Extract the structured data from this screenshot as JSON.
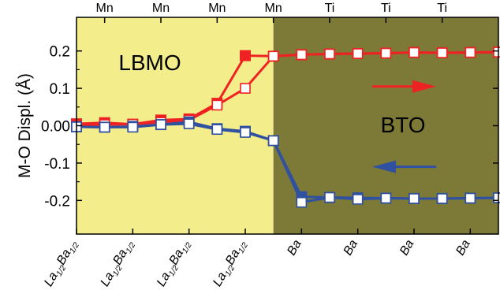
{
  "chart_data": {
    "type": "line",
    "ylabel": "M-O Displ. (Å)",
    "ylim": [
      -0.29,
      0.29
    ],
    "yticks": [
      -0.2,
      -0.1,
      0.0,
      0.1,
      0.2
    ],
    "ytick_labels": [
      "-0.2",
      "-0.1",
      "0.00",
      "0.1",
      "0.2"
    ],
    "xlim": [
      0,
      7.5
    ],
    "x": [
      0,
      0.5,
      1,
      1.5,
      2,
      2.5,
      3,
      3.5,
      4,
      4.5,
      5,
      5.5,
      6,
      6.5,
      7,
      7.5
    ],
    "top_axis": {
      "positions": [
        0.5,
        1.5,
        2.5,
        3.5,
        4.5,
        5.5,
        6.5
      ],
      "labels": [
        "Mn",
        "Mn",
        "Mn",
        "Mn",
        "Ti",
        "Ti",
        "Ti"
      ]
    },
    "bottom_axis": {
      "positions": [
        0,
        1,
        2,
        3,
        4,
        5,
        6,
        7
      ],
      "labels": [
        "La1/2Ba1/2",
        "La1/2Ba1/2",
        "La1/2Ba1/2",
        "La1/2Ba1/2",
        "Ba",
        "Ba",
        "Ba",
        "Ba"
      ]
    },
    "regions": [
      {
        "label": "LBMO",
        "x_range": [
          0,
          3.5
        ],
        "color": "#f3ee8b"
      },
      {
        "label": "BTO",
        "x_range": [
          3.5,
          7.5
        ],
        "color": "#7d7a37"
      }
    ],
    "series": [
      {
        "color": "#ee2222",
        "marker": "filled-square",
        "values": [
          0.005,
          0.008,
          0.004,
          0.015,
          0.018,
          0.06,
          0.1875,
          0.186,
          0.19,
          0.192,
          0.193,
          0.194,
          0.196,
          0.195,
          0.196,
          0.197
        ]
      },
      {
        "color": "#ee2222",
        "marker": "open-square",
        "values": [
          0.0,
          0.003,
          0.004,
          0.009,
          0.015,
          0.055,
          0.1,
          0.186,
          0.19,
          0.192,
          0.193,
          0.194,
          0.196,
          0.195,
          0.196,
          0.197
        ]
      },
      {
        "color": "#3050a0",
        "marker": "filled-square",
        "values": [
          -0.003,
          -0.004,
          -0.002,
          0.003,
          0.01,
          -0.008,
          -0.015,
          -0.04,
          -0.19,
          -0.192,
          -0.193,
          -0.194,
          -0.195,
          -0.195,
          -0.194,
          -0.193
        ]
      },
      {
        "color": "#3050a0",
        "marker": "open-square",
        "values": [
          -0.003,
          -0.004,
          -0.004,
          0.003,
          0.005,
          -0.01,
          -0.018,
          -0.04,
          -0.205,
          -0.192,
          -0.197,
          -0.194,
          -0.195,
          -0.195,
          -0.194,
          -0.193
        ]
      }
    ],
    "arrows": [
      {
        "direction": "right",
        "color": "#ee2222",
        "y": 0.105
      },
      {
        "direction": "left",
        "color": "#3050a0",
        "y": -0.11
      }
    ]
  }
}
